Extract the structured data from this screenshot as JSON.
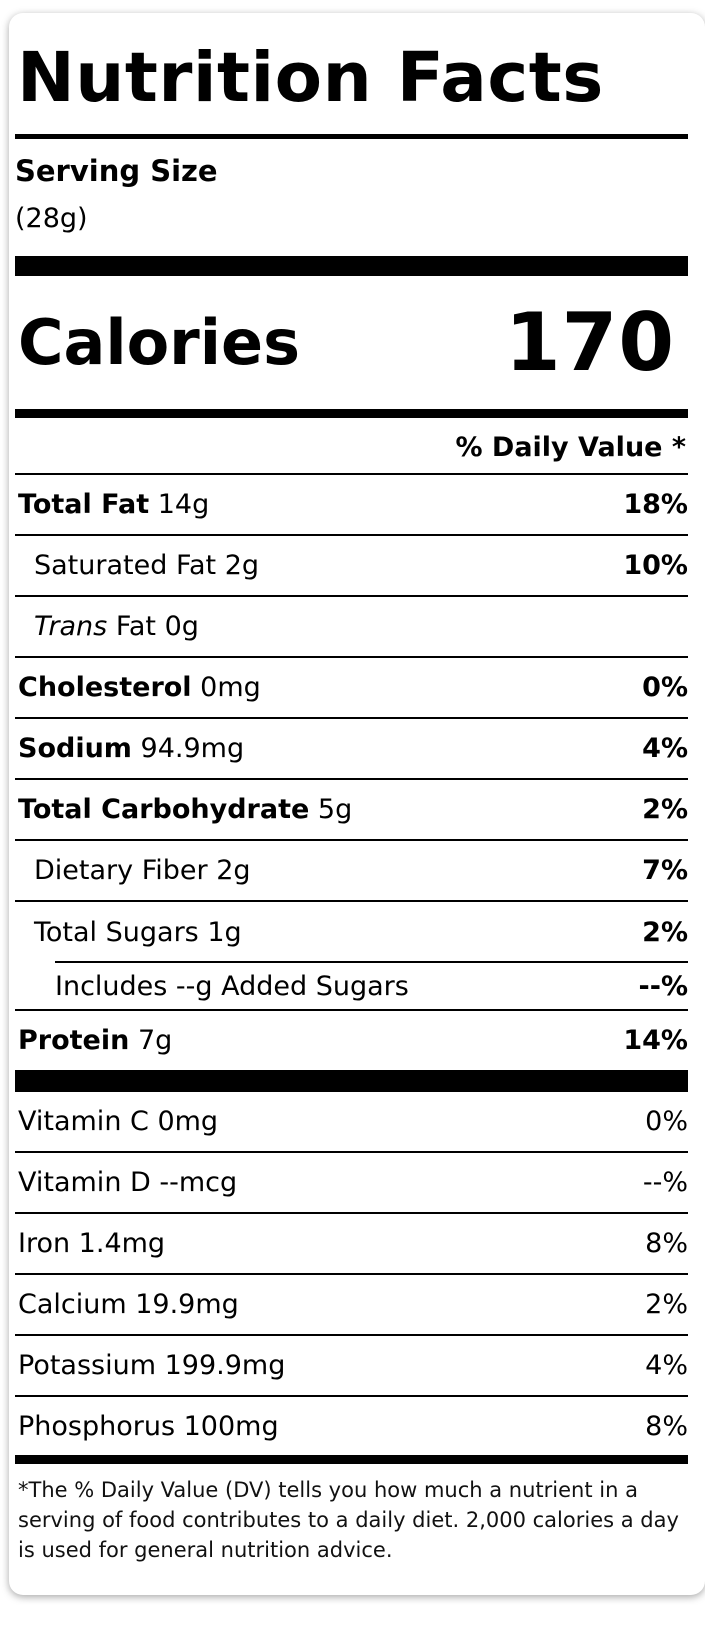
{
  "label": {
    "title": "Nutrition Facts",
    "serving_size_label": "Serving Size",
    "serving_size_value": "(28g)",
    "calories_label": "Calories",
    "calories_value": "170",
    "daily_value_header": "% Daily Value *"
  },
  "nutrients": {
    "total_fat": {
      "name": "Total Fat",
      "amount": "14g",
      "dv": "18%"
    },
    "saturated_fat": {
      "name": "Saturated Fat",
      "amount": "2g",
      "dv": "10%"
    },
    "trans_fat": {
      "name_italic": "Trans",
      "name": "Fat",
      "amount": "0g",
      "dv": ""
    },
    "cholesterol": {
      "name": "Cholesterol",
      "amount": "0mg",
      "dv": "0%"
    },
    "sodium": {
      "name": "Sodium",
      "amount": "94.9mg",
      "dv": "4%"
    },
    "total_carbohydrate": {
      "name": "Total Carbohydrate",
      "amount": "5g",
      "dv": "2%"
    },
    "dietary_fiber": {
      "name": "Dietary Fiber",
      "amount": "2g",
      "dv": "7%"
    },
    "total_sugars": {
      "name": "Total Sugars",
      "amount": "1g",
      "dv": "2%"
    },
    "added_sugars": {
      "text": "Includes --g Added Sugars",
      "dv": "--%"
    },
    "protein": {
      "name": "Protein",
      "amount": "7g",
      "dv": "14%"
    }
  },
  "vitamins": [
    {
      "text": "Vitamin C 0mg",
      "dv": "0%"
    },
    {
      "text": "Vitamin D --mcg",
      "dv": "--%"
    },
    {
      "text": "Iron 1.4mg",
      "dv": "8%"
    },
    {
      "text": "Calcium 19.9mg",
      "dv": "2%"
    },
    {
      "text": "Potassium 199.9mg",
      "dv": "4%"
    },
    {
      "text": "Phosphorus 100mg",
      "dv": "8%"
    }
  ],
  "footnote": "*The % Daily Value (DV) tells you how much a nutrient in a serving of food contributes to a daily diet. 2,000 calories a day is used for general nutrition advice."
}
